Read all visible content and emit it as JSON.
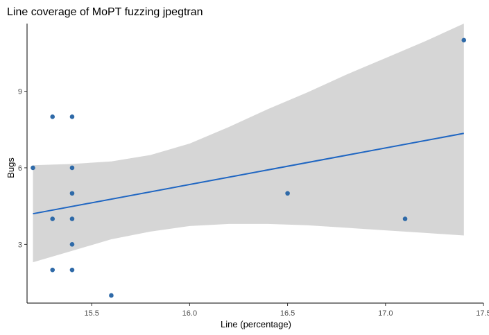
{
  "chart_data": {
    "type": "scatter",
    "title": "Line coverage of MoPT fuzzing jpegtran",
    "xlabel": "Line (percentage)",
    "ylabel": "Bugs",
    "xlim": [
      15.17,
      17.5
    ],
    "ylim": [
      0.7,
      11.65
    ],
    "x_ticks": [
      15.5,
      16.0,
      16.5,
      17.0,
      17.5
    ],
    "x_tick_labels": [
      "15.5",
      "16.0",
      "16.5",
      "17.0",
      "17.5"
    ],
    "y_ticks": [
      3,
      6,
      9
    ],
    "y_tick_labels": [
      "3",
      "6",
      "9"
    ],
    "points": [
      {
        "x": 15.2,
        "y": 6
      },
      {
        "x": 15.3,
        "y": 8
      },
      {
        "x": 15.3,
        "y": 4
      },
      {
        "x": 15.3,
        "y": 2
      },
      {
        "x": 15.4,
        "y": 8
      },
      {
        "x": 15.4,
        "y": 6
      },
      {
        "x": 15.4,
        "y": 5
      },
      {
        "x": 15.4,
        "y": 4
      },
      {
        "x": 15.4,
        "y": 3
      },
      {
        "x": 15.4,
        "y": 2
      },
      {
        "x": 15.6,
        "y": 1
      },
      {
        "x": 16.5,
        "y": 5
      },
      {
        "x": 17.1,
        "y": 4
      },
      {
        "x": 17.4,
        "y": 11
      }
    ],
    "trend_line": {
      "x": [
        15.2,
        17.4
      ],
      "y": [
        4.2,
        7.35
      ]
    },
    "confidence_band": {
      "x": [
        15.2,
        15.4,
        15.6,
        15.8,
        16.0,
        16.2,
        16.4,
        16.6,
        16.8,
        17.0,
        17.2,
        17.4
      ],
      "upper": [
        6.1,
        6.15,
        6.25,
        6.5,
        6.95,
        7.6,
        8.3,
        8.95,
        9.65,
        10.3,
        10.95,
        11.65
      ],
      "lower": [
        2.3,
        2.75,
        3.2,
        3.5,
        3.72,
        3.8,
        3.8,
        3.75,
        3.65,
        3.55,
        3.45,
        3.35
      ]
    },
    "grid": false,
    "legend": "none",
    "colors": {
      "points": "#2f6aa8",
      "trend_line": "#1f66c2",
      "band": "#d6d6d6"
    }
  }
}
